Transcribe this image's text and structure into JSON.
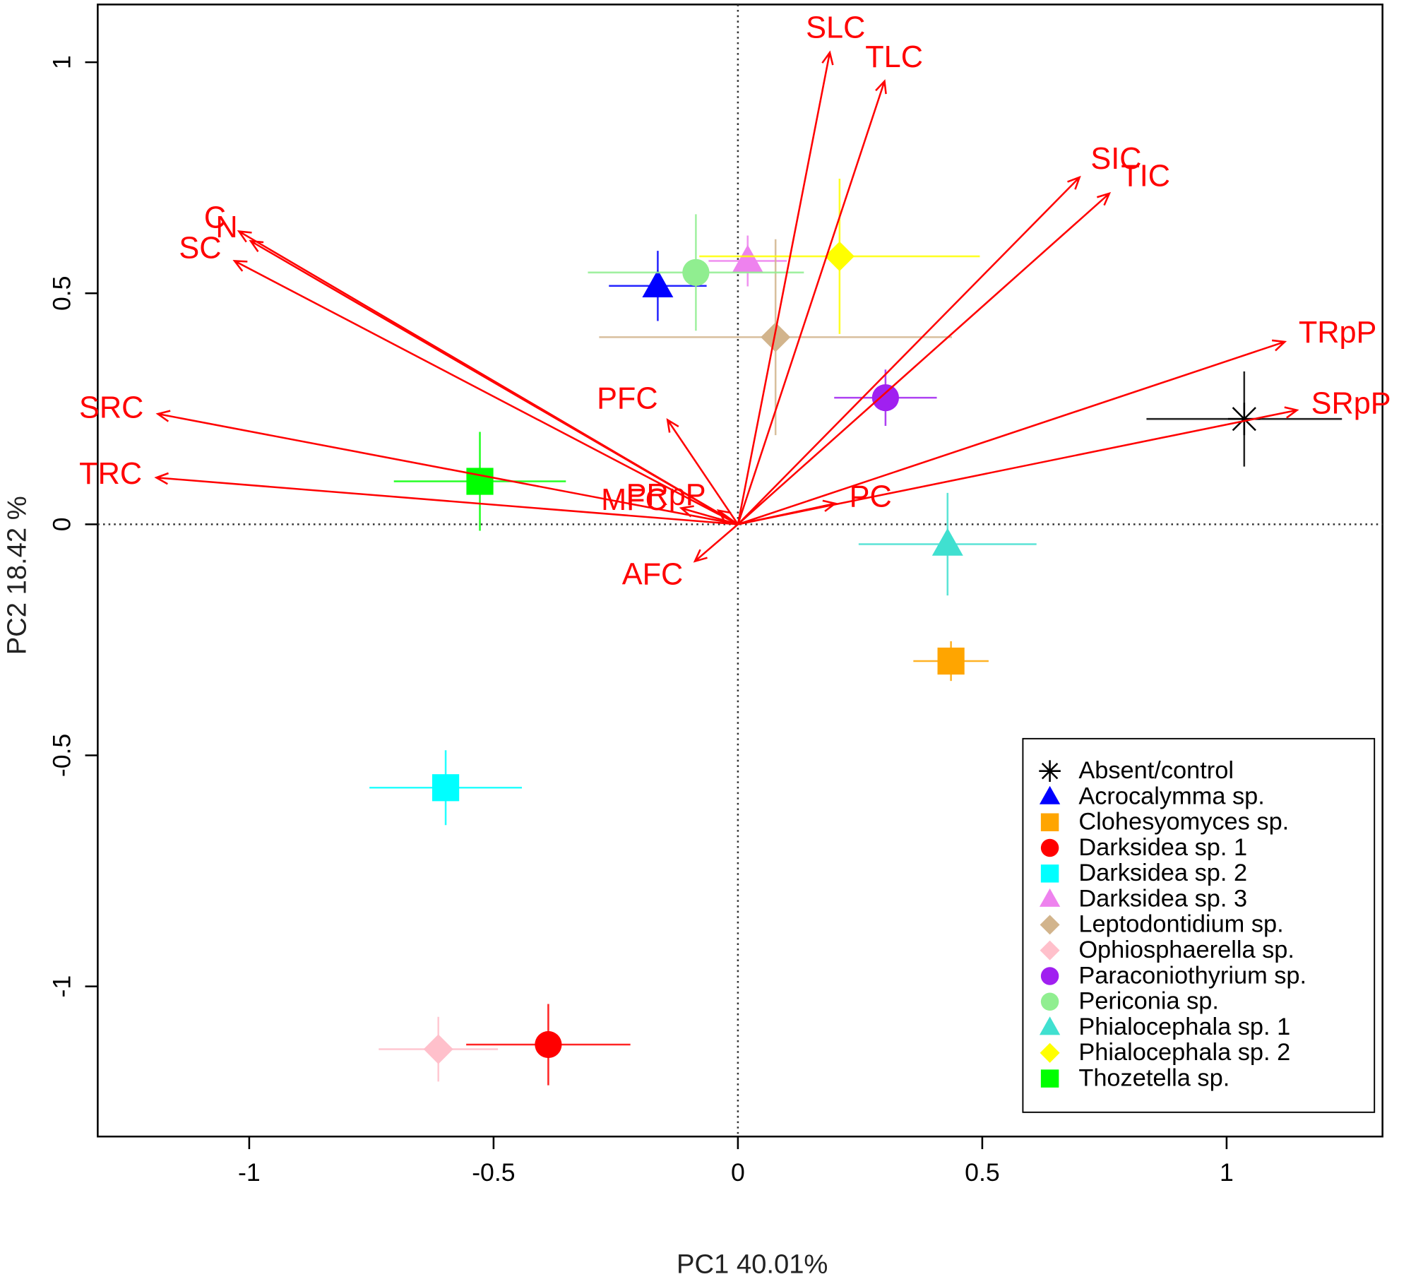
{
  "chart_data": {
    "type": "biplot",
    "x_label": "PC1 40.01%",
    "y_label": "PC2 18.42 %",
    "xlim": [
      -1.31,
      1.319
    ],
    "ylim": [
      -1.325,
      1.125
    ],
    "xticks": [
      -1,
      -0.5,
      0,
      0.5,
      1
    ],
    "yticks": [
      -1,
      -0.5,
      0,
      0.5,
      1
    ],
    "reference_lines": true,
    "legend": "bottom-right",
    "arrow_color": "#ff0000",
    "arrows": [
      {
        "label": "SLC",
        "x": 0.188,
        "y": 1.021
      },
      {
        "label": "TLC",
        "x": 0.3,
        "y": 0.959
      },
      {
        "label": "SIC",
        "x": 0.699,
        "y": 0.751
      },
      {
        "label": "TIC",
        "x": 0.76,
        "y": 0.716
      },
      {
        "label": "TRpP",
        "x": 1.119,
        "y": 0.395
      },
      {
        "label": "SRpP",
        "x": 1.144,
        "y": 0.247
      },
      {
        "label": "PC",
        "x": 0.199,
        "y": 0.045
      },
      {
        "label": "AFC",
        "x": -0.088,
        "y": -0.08
      },
      {
        "label": "MFC",
        "x": -0.116,
        "y": 0.035
      },
      {
        "label": "PRpP",
        "x": -0.04,
        "y": 0.03
      },
      {
        "label": "PFC",
        "x": -0.144,
        "y": 0.226
      },
      {
        "label": "TRC",
        "x": -1.19,
        "y": 0.101
      },
      {
        "label": "SRC",
        "x": -1.187,
        "y": 0.239
      },
      {
        "label": "C",
        "x": -1.021,
        "y": 0.634
      },
      {
        "label": "N",
        "x": -0.997,
        "y": 0.613
      },
      {
        "label": "SC",
        "x": -1.03,
        "y": 0.57
      }
    ],
    "series": [
      {
        "name": "Absent/control",
        "color": "#000000",
        "marker": "star",
        "x": [
          1.036
        ],
        "values": [
          0.228
        ],
        "xerr": [
          0.2
        ],
        "yerr": [
          0.103
        ]
      },
      {
        "name": "Acrocalymma sp.",
        "color": "#0000ff",
        "marker": "triangle",
        "x": [
          -0.164
        ],
        "values": [
          0.516
        ],
        "xerr": [
          0.1
        ],
        "yerr": [
          0.076
        ]
      },
      {
        "name": "Clohesyomyces sp.",
        "color": "#ffa500",
        "marker": "square",
        "x": [
          0.436
        ],
        "values": [
          -0.296
        ],
        "xerr": [
          0.077
        ],
        "yerr": [
          0.043
        ]
      },
      {
        "name": "Darksidea sp. 1",
        "color": "#ff0000",
        "marker": "circle",
        "x": [
          -0.388
        ],
        "values": [
          -1.126
        ],
        "xerr": [
          0.168
        ],
        "yerr": [
          0.088
        ]
      },
      {
        "name": "Darksidea sp. 2",
        "color": "#00ffff",
        "marker": "square",
        "x": [
          -0.598
        ],
        "values": [
          -0.57
        ],
        "xerr": [
          0.156
        ],
        "yerr": [
          0.081
        ]
      },
      {
        "name": "Darksidea sp. 3",
        "color": "#ee82ee",
        "marker": "triangle",
        "x": [
          0.02
        ],
        "values": [
          0.57
        ],
        "xerr": [
          0.08
        ],
        "yerr": [
          0.055
        ]
      },
      {
        "name": "Leptodontidium sp.",
        "color": "#d2b48c",
        "marker": "diamond",
        "x": [
          0.077
        ],
        "values": [
          0.405
        ],
        "xerr": [
          0.361
        ],
        "yerr": [
          0.212
        ]
      },
      {
        "name": "Ophiosphaerella sp.",
        "color": "#ffc0cb",
        "marker": "diamond",
        "x": [
          -0.613
        ],
        "values": [
          -1.136
        ],
        "xerr": [
          0.122
        ],
        "yerr": [
          0.07
        ]
      },
      {
        "name": "Paraconiothyrium sp.",
        "color": "#a020f0",
        "marker": "circle",
        "x": [
          0.302
        ],
        "values": [
          0.274
        ],
        "xerr": [
          0.105
        ],
        "yerr": [
          0.061
        ]
      },
      {
        "name": "Periconia sp.",
        "color": "#90ee90",
        "marker": "circle",
        "x": [
          -0.086
        ],
        "values": [
          0.545
        ],
        "xerr": [
          0.221
        ],
        "yerr": [
          0.126
        ]
      },
      {
        "name": "Phialocephala sp. 1",
        "color": "#40e0d0",
        "marker": "triangle",
        "x": [
          0.429
        ],
        "values": [
          -0.043
        ],
        "xerr": [
          0.182
        ],
        "yerr": [
          0.111
        ]
      },
      {
        "name": "Phialocephala sp. 2",
        "color": "#ffff00",
        "marker": "diamond",
        "x": [
          0.208
        ],
        "values": [
          0.58
        ],
        "xerr": [
          0.287
        ],
        "yerr": [
          0.168
        ]
      },
      {
        "name": "Thozetella sp.",
        "color": "#00ff00",
        "marker": "square",
        "x": [
          -0.528
        ],
        "values": [
          0.093
        ],
        "xerr": [
          0.176
        ],
        "yerr": [
          0.107
        ]
      }
    ]
  }
}
